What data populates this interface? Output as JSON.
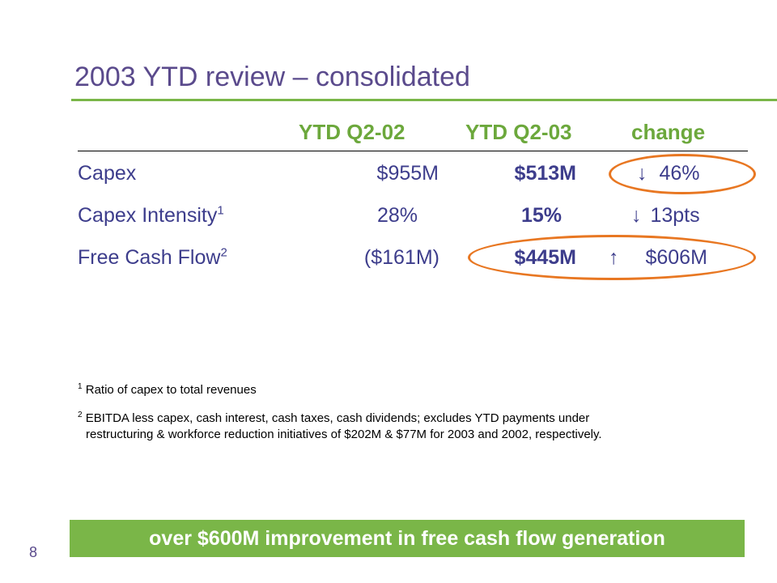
{
  "slide": {
    "title": "2003 YTD review – consolidated",
    "page_number": "8"
  },
  "table": {
    "headers": [
      "YTD Q2-02",
      "YTD Q2-03",
      "change"
    ],
    "rows": [
      {
        "label": "Capex",
        "label_sup": "",
        "q2_02": "$955M",
        "q2_03": "$513M",
        "change_arrow": "down-arrow-icon",
        "change": "46%"
      },
      {
        "label": "Capex Intensity",
        "label_sup": "1",
        "q2_02": "28%",
        "q2_03": "15%",
        "change_arrow": "down-arrow-icon",
        "change": "13pts"
      },
      {
        "label": "Free Cash Flow",
        "label_sup": "2",
        "q2_02": "($161M)",
        "q2_03": "$445M",
        "change_arrow": "up-arrow-icon",
        "change": "$606M"
      }
    ]
  },
  "footnotes": [
    {
      "marker": "1",
      "text": "Ratio of capex to total revenues"
    },
    {
      "marker": "2",
      "line1": "EBITDA less capex, cash interest, cash taxes, cash dividends; excludes YTD payments under",
      "line2": "restructuring & workforce reduction initiatives of $202M & $77M for 2003 and 2002, respectively."
    }
  ],
  "callout": "over $600M improvement in free cash flow generation",
  "colors": {
    "title": "#5a4a8c",
    "accent_green": "#7ab648",
    "header_green": "#6ca83c",
    "body_text": "#3d3d8c",
    "highlight_orange": "#e87722"
  }
}
